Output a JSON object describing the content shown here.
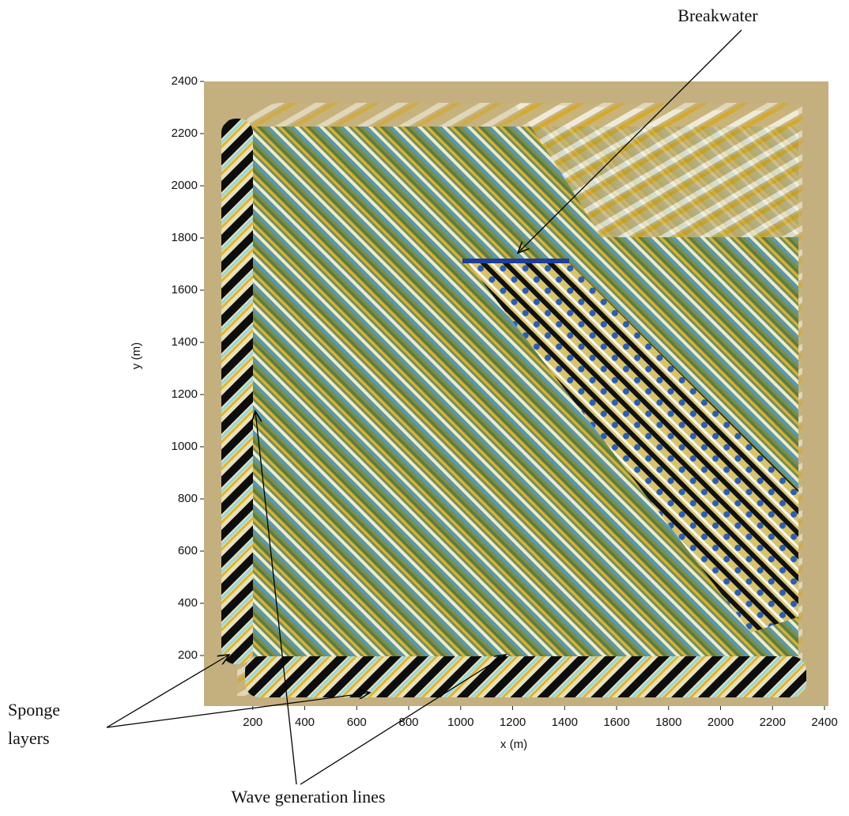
{
  "chart_data": {
    "type": "field",
    "xlabel": "x (m)",
    "ylabel": "y (m)",
    "xlim": [
      0,
      2400
    ],
    "ylim": [
      0,
      2400
    ],
    "xticks": [
      200,
      400,
      600,
      800,
      1000,
      1200,
      1400,
      1600,
      1800,
      2000,
      2200,
      2400
    ],
    "yticks": [
      200,
      400,
      600,
      800,
      1000,
      1200,
      1400,
      1600,
      1800,
      2000,
      2200,
      2400
    ],
    "annotations": [
      "Breakwater",
      "Sponge",
      "layers",
      "Wave generation lines"
    ]
  }
}
